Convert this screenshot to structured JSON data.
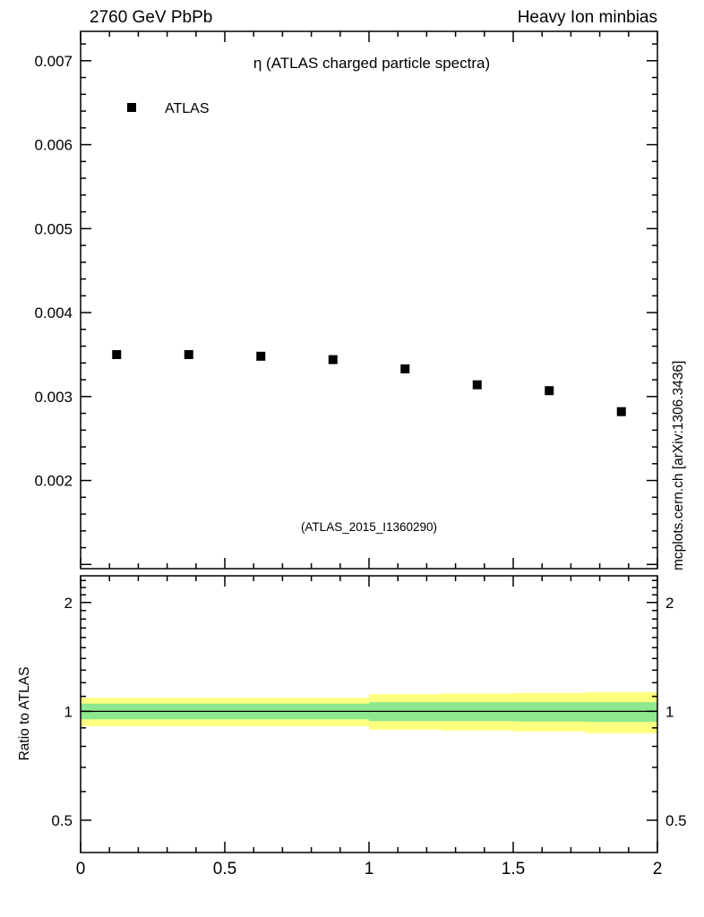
{
  "header": {
    "left": "2760 GeV PbPb",
    "right": "Heavy Ion minbias"
  },
  "side_note": "mcplots.cern.ch [arXiv:1306.3436]",
  "colors": {
    "marker": "#000000",
    "band_outer": "#ffff80",
    "band_inner": "#8de88d",
    "watermark": "#aaaaaa",
    "side_note": "#8c8c8c"
  },
  "chart_data": [
    {
      "type": "scatter",
      "title": "η (ATLAS charged particle spectra)",
      "annotation": "(ATLAS_2015_I1360290)",
      "legend": [
        {
          "label": "ATLAS",
          "marker": "filled-square",
          "color": "#000000"
        }
      ],
      "xlim": [
        0,
        2
      ],
      "ylim": [
        0.00095,
        0.00735
      ],
      "xticks": [
        0,
        0.5,
        1,
        1.5,
        2
      ],
      "yticks": [
        0.002,
        0.003,
        0.004,
        0.005,
        0.006,
        0.007
      ],
      "x_minor_step": 0.1,
      "y_minor_step": 0.0002,
      "x": [
        0.125,
        0.375,
        0.625,
        0.875,
        1.125,
        1.375,
        1.625,
        1.875
      ],
      "y": [
        0.0035,
        0.0035,
        0.00348,
        0.00344,
        0.00333,
        0.00314,
        0.00307,
        0.00282
      ]
    },
    {
      "type": "band",
      "ylabel": "Ratio to ATLAS",
      "yscale": "log",
      "xlim": [
        0,
        2
      ],
      "ylim": [
        0.407,
        2.37
      ],
      "xticks": [
        0,
        0.5,
        1,
        1.5,
        2
      ],
      "yticks": [
        0.5,
        1,
        2
      ],
      "x_minor_step": 0.1,
      "reference_line": 1,
      "band_edges": [
        0,
        0.25,
        0.5,
        0.75,
        1,
        1.25,
        1.5,
        1.75,
        2
      ],
      "bands": [
        {
          "name": "total-uncertainty",
          "color": "#ffff80",
          "lo": [
            0.91,
            0.91,
            0.91,
            0.91,
            0.89,
            0.885,
            0.88,
            0.87
          ],
          "hi": [
            1.09,
            1.09,
            1.09,
            1.09,
            1.115,
            1.12,
            1.125,
            1.13
          ]
        },
        {
          "name": "stat-uncertainty",
          "color": "#8de88d",
          "lo": [
            0.95,
            0.95,
            0.95,
            0.95,
            0.94,
            0.94,
            0.938,
            0.935
          ],
          "hi": [
            1.05,
            1.05,
            1.05,
            1.05,
            1.06,
            1.06,
            1.06,
            1.06
          ]
        }
      ]
    }
  ]
}
